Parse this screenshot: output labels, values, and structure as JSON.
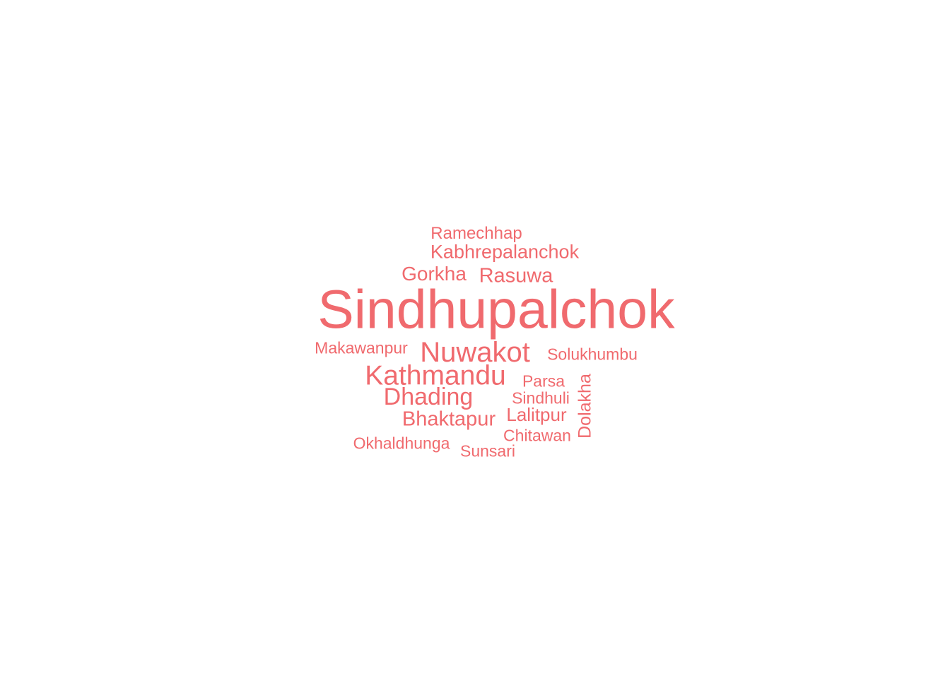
{
  "word_cloud": {
    "color": "#F06A6E",
    "words": [
      {
        "text": "Sindhupalchok"
      },
      {
        "text": "Nuwakot"
      },
      {
        "text": "Kathmandu"
      },
      {
        "text": "Dhading"
      },
      {
        "text": "Kabhrepalanchok"
      },
      {
        "text": "Gorkha"
      },
      {
        "text": "Rasuwa"
      },
      {
        "text": "Bhaktapur"
      },
      {
        "text": "Lalitpur"
      },
      {
        "text": "Dolakha"
      },
      {
        "text": "Ramechhap"
      },
      {
        "text": "Makawanpur"
      },
      {
        "text": "Solukhumbu"
      },
      {
        "text": "Parsa"
      },
      {
        "text": "Sindhuli"
      },
      {
        "text": "Chitawan"
      },
      {
        "text": "Okhaldhunga"
      },
      {
        "text": "Sunsari"
      }
    ]
  }
}
